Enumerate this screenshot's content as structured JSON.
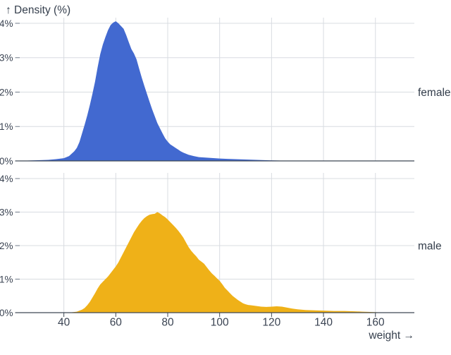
{
  "colors": {
    "female_area": "#4269d0",
    "male_area": "#efb118",
    "grid": "#d8dce1",
    "axis": "#3d4754",
    "tick_minor": "#707b89",
    "text": "#3a4352",
    "background": "#ffffff"
  },
  "chart_data": {
    "type": "area",
    "y_axis_title": "↑ Density (%)",
    "x_axis_title": "weight →",
    "xlabel": "weight",
    "ylabel": "Density (%)",
    "xlim": [
      23,
      175
    ],
    "ylim": [
      0,
      4
    ],
    "grid": true,
    "x_ticks": [
      40,
      60,
      80,
      100,
      120,
      140,
      160
    ],
    "x_tick_labels": [
      "40",
      "60",
      "80",
      "100",
      "120",
      "140",
      "160"
    ],
    "y_ticks": [
      0,
      1,
      2,
      3,
      4
    ],
    "y_tick_labels": [
      "0%",
      "1%",
      "2%",
      "3%",
      "4%"
    ],
    "facets": [
      {
        "label": "female",
        "color": "#4269d0",
        "peak": {
          "weight": 60,
          "density_percent": 4.05
        },
        "points": [
          [
            23,
            0.01
          ],
          [
            26,
            0.01
          ],
          [
            30,
            0.02
          ],
          [
            34,
            0.03
          ],
          [
            37,
            0.05
          ],
          [
            40,
            0.08
          ],
          [
            42,
            0.14
          ],
          [
            44,
            0.28
          ],
          [
            45,
            0.38
          ],
          [
            46,
            0.55
          ],
          [
            47,
            0.8
          ],
          [
            48,
            1.05
          ],
          [
            49,
            1.32
          ],
          [
            50,
            1.62
          ],
          [
            51,
            1.95
          ],
          [
            52,
            2.3
          ],
          [
            53,
            2.72
          ],
          [
            54,
            3.1
          ],
          [
            55,
            3.38
          ],
          [
            56,
            3.6
          ],
          [
            57,
            3.8
          ],
          [
            58,
            3.95
          ],
          [
            59,
            4.02
          ],
          [
            60,
            4.06
          ],
          [
            61,
            4.0
          ],
          [
            62,
            3.92
          ],
          [
            63,
            3.84
          ],
          [
            64,
            3.66
          ],
          [
            65,
            3.45
          ],
          [
            66,
            3.25
          ],
          [
            67,
            3.12
          ],
          [
            68,
            2.95
          ],
          [
            69,
            2.68
          ],
          [
            70,
            2.42
          ],
          [
            71,
            2.18
          ],
          [
            72,
            1.95
          ],
          [
            73,
            1.72
          ],
          [
            74,
            1.5
          ],
          [
            75,
            1.3
          ],
          [
            76,
            1.1
          ],
          [
            77,
            0.95
          ],
          [
            78,
            0.8
          ],
          [
            79,
            0.66
          ],
          [
            80,
            0.56
          ],
          [
            81,
            0.48
          ],
          [
            82,
            0.43
          ],
          [
            83,
            0.38
          ],
          [
            84,
            0.33
          ],
          [
            85,
            0.28
          ],
          [
            86,
            0.24
          ],
          [
            88,
            0.18
          ],
          [
            90,
            0.14
          ],
          [
            92,
            0.11
          ],
          [
            94,
            0.1
          ],
          [
            96,
            0.09
          ],
          [
            98,
            0.08
          ],
          [
            100,
            0.07
          ],
          [
            103,
            0.06
          ],
          [
            106,
            0.05
          ],
          [
            110,
            0.04
          ],
          [
            114,
            0.03
          ],
          [
            118,
            0.02
          ],
          [
            122,
            0.012
          ],
          [
            126,
            0.006
          ],
          [
            130,
            0.003
          ],
          [
            134,
            0
          ]
        ]
      },
      {
        "label": "male",
        "color": "#efb118",
        "peak": {
          "weight": 76,
          "density_percent": 3.0
        },
        "points": [
          [
            40,
            0
          ],
          [
            43,
            0.01
          ],
          [
            45,
            0.03
          ],
          [
            46,
            0.06
          ],
          [
            47,
            0.09
          ],
          [
            48,
            0.14
          ],
          [
            49,
            0.22
          ],
          [
            50,
            0.32
          ],
          [
            51,
            0.45
          ],
          [
            52,
            0.58
          ],
          [
            53,
            0.72
          ],
          [
            54,
            0.84
          ],
          [
            55,
            0.92
          ],
          [
            56,
            1.0
          ],
          [
            57,
            1.08
          ],
          [
            58,
            1.18
          ],
          [
            59,
            1.28
          ],
          [
            60,
            1.38
          ],
          [
            61,
            1.5
          ],
          [
            62,
            1.65
          ],
          [
            63,
            1.8
          ],
          [
            64,
            1.95
          ],
          [
            65,
            2.1
          ],
          [
            66,
            2.25
          ],
          [
            67,
            2.4
          ],
          [
            68,
            2.52
          ],
          [
            69,
            2.64
          ],
          [
            70,
            2.74
          ],
          [
            71,
            2.82
          ],
          [
            72,
            2.88
          ],
          [
            73,
            2.92
          ],
          [
            74,
            2.94
          ],
          [
            75,
            2.95
          ],
          [
            76,
            3.0
          ],
          [
            77,
            2.96
          ],
          [
            78,
            2.9
          ],
          [
            79,
            2.85
          ],
          [
            80,
            2.78
          ],
          [
            81,
            2.7
          ],
          [
            82,
            2.62
          ],
          [
            83,
            2.54
          ],
          [
            84,
            2.45
          ],
          [
            85,
            2.35
          ],
          [
            86,
            2.24
          ],
          [
            87,
            2.1
          ],
          [
            88,
            1.96
          ],
          [
            89,
            1.85
          ],
          [
            90,
            1.76
          ],
          [
            91,
            1.68
          ],
          [
            92,
            1.58
          ],
          [
            93,
            1.52
          ],
          [
            94,
            1.46
          ],
          [
            95,
            1.36
          ],
          [
            96,
            1.26
          ],
          [
            97,
            1.17
          ],
          [
            98,
            1.1
          ],
          [
            99,
            1.02
          ],
          [
            100,
            0.95
          ],
          [
            101,
            0.85
          ],
          [
            102,
            0.74
          ],
          [
            103,
            0.66
          ],
          [
            104,
            0.58
          ],
          [
            105,
            0.5
          ],
          [
            106,
            0.44
          ],
          [
            107,
            0.38
          ],
          [
            108,
            0.33
          ],
          [
            109,
            0.28
          ],
          [
            110,
            0.25
          ],
          [
            111,
            0.23
          ],
          [
            112,
            0.22
          ],
          [
            114,
            0.2
          ],
          [
            116,
            0.18
          ],
          [
            118,
            0.17
          ],
          [
            120,
            0.18
          ],
          [
            122,
            0.19
          ],
          [
            124,
            0.18
          ],
          [
            126,
            0.15
          ],
          [
            128,
            0.12
          ],
          [
            130,
            0.1
          ],
          [
            133,
            0.08
          ],
          [
            136,
            0.07
          ],
          [
            140,
            0.06
          ],
          [
            144,
            0.05
          ],
          [
            148,
            0.05
          ],
          [
            152,
            0.04
          ],
          [
            155,
            0.03
          ],
          [
            158,
            0.02
          ],
          [
            161,
            0.01
          ],
          [
            164,
            0
          ]
        ]
      }
    ]
  }
}
